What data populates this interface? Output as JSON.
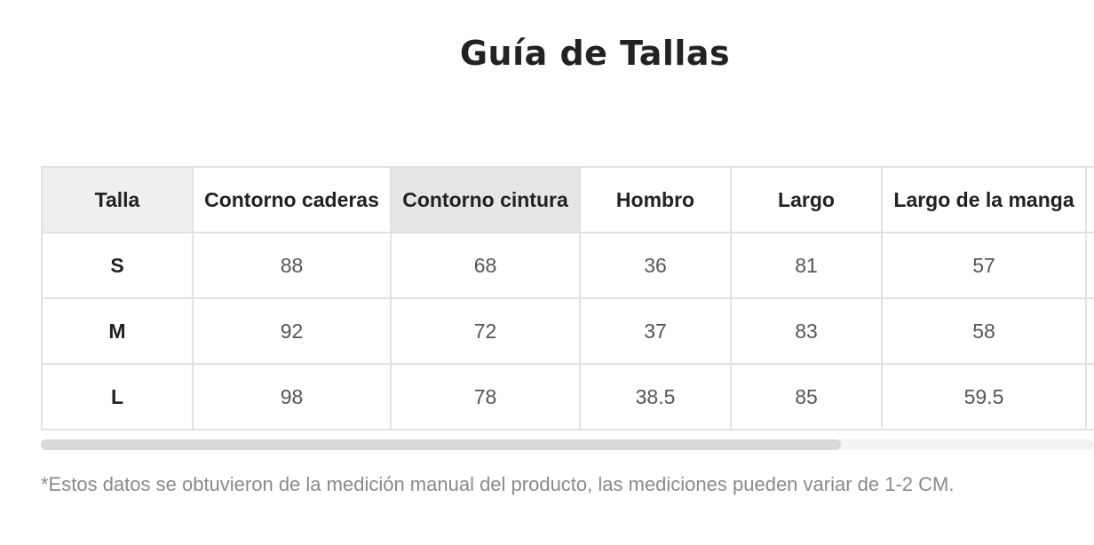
{
  "page": {
    "title": "Guía de Tallas",
    "note": "*Estos datos se obtuvieron de la medición manual del producto, las mediciones pueden variar de 1-2 CM."
  },
  "table": {
    "headers": [
      "Talla",
      "Contorno caderas",
      "Contorno cintura",
      "Hombro",
      "Largo",
      "Largo de la manga"
    ],
    "rows": [
      {
        "size": "S",
        "hip": "88",
        "waist": "68",
        "shoulder": "36",
        "length": "81",
        "sleeve": "57"
      },
      {
        "size": "M",
        "hip": "92",
        "waist": "72",
        "shoulder": "37",
        "length": "83",
        "sleeve": "58"
      },
      {
        "size": "L",
        "hip": "98",
        "waist": "78",
        "shoulder": "38.5",
        "length": "85",
        "sleeve": "59.5"
      }
    ]
  },
  "scrollbar": {
    "thumb_fraction": 0.76
  },
  "colors": {
    "header_highlight": "#efefef",
    "header_active": "#e6e6e6",
    "border": "#e2e2e2",
    "note_text": "#8a8a8a"
  }
}
